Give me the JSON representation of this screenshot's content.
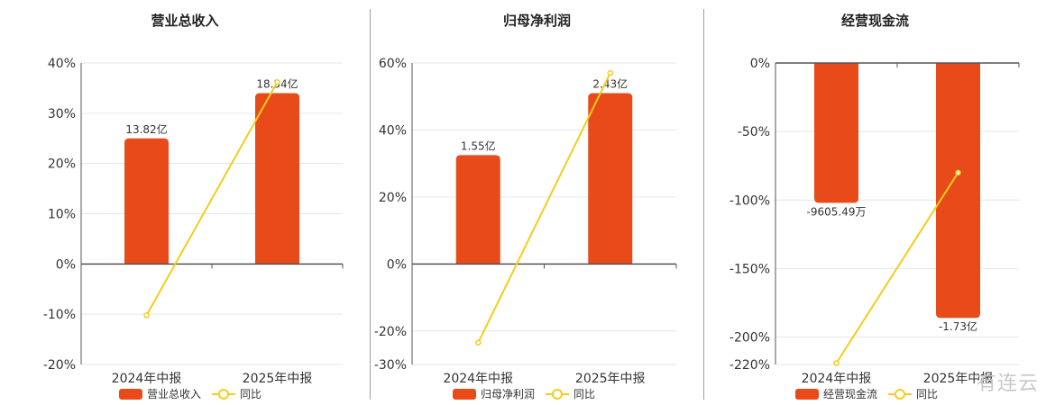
{
  "colors": {
    "bar": "#E84A1A",
    "line": "#F5CD1B",
    "axis": "#555555",
    "grid": "#e6e6e6"
  },
  "watermark": "有连云",
  "legend": {
    "line_name": "同比"
  },
  "chart_data": [
    {
      "type": "bar",
      "title": "营业总收入",
      "categories": [
        "2024年中报",
        "2025年中报"
      ],
      "series": [
        {
          "name": "营业总收入",
          "values": [
            25,
            34
          ],
          "labels": [
            "13.82亿",
            "18.34亿"
          ]
        },
        {
          "name": "同比",
          "type": "line",
          "values": [
            -10.2,
            36.2
          ]
        }
      ],
      "ylim": [
        -20,
        40
      ],
      "yticks": [
        40,
        30,
        20,
        10,
        0,
        -10,
        -20
      ],
      "ytick_labels": [
        "40%",
        "30%",
        "20%",
        "10%",
        "0%",
        "-10%",
        "-20%"
      ],
      "grid": true,
      "legend_position": "bottom"
    },
    {
      "type": "bar",
      "title": "归母净利润",
      "categories": [
        "2024年中报",
        "2025年中报"
      ],
      "series": [
        {
          "name": "归母净利润",
          "values": [
            32.5,
            51
          ],
          "labels": [
            "1.55亿",
            "2.43亿"
          ]
        },
        {
          "name": "同比",
          "type": "line",
          "values": [
            -23.5,
            57
          ]
        }
      ],
      "ylim": [
        -30,
        60
      ],
      "yticks": [
        60,
        40,
        20,
        0,
        -20,
        -30
      ],
      "ytick_labels": [
        "60%",
        "40%",
        "20%",
        "0%",
        "-20%",
        "-30%"
      ],
      "grid": true,
      "legend_position": "bottom"
    },
    {
      "type": "bar",
      "title": "经营现金流",
      "categories": [
        "2024年中报",
        "2025年中报"
      ],
      "series": [
        {
          "name": "经营现金流",
          "values": [
            -102,
            -186
          ],
          "labels": [
            "-9605.49万",
            "-1.73亿"
          ]
        },
        {
          "name": "同比",
          "type": "line",
          "values": [
            -219,
            -80
          ]
        }
      ],
      "ylim": [
        -220,
        0
      ],
      "yticks": [
        0,
        -50,
        -100,
        -150,
        -200,
        -220
      ],
      "ytick_labels": [
        "0%",
        "-50%",
        "-100%",
        "-150%",
        "-200%",
        "-220%"
      ],
      "grid": true,
      "legend_position": "bottom"
    }
  ]
}
